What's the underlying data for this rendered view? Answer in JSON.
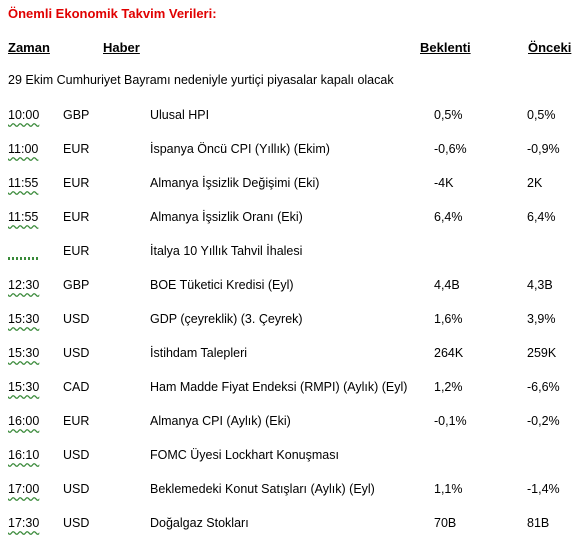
{
  "title": "Önemli Ekonomik Takvim Verileri:",
  "headers": {
    "time": "Zaman",
    "news": "Haber",
    "expected": "Beklenti",
    "previous": "Önceki"
  },
  "notice": "29 Ekim Cumhuriyet Bayramı nedeniyle yurtiçi piyasalar kapalı olacak",
  "rows": [
    {
      "time": "10:00",
      "currency": "GBP",
      "news": "Ulusal HPI",
      "expected": "0,5%",
      "previous": "0,5%"
    },
    {
      "time": "11:00",
      "currency": "EUR",
      "news": "İspanya Öncü CPI (Yıllık) (Ekim)",
      "expected": "-0,6%",
      "previous": "-0,9%"
    },
    {
      "time": "11:55",
      "currency": "EUR",
      "news": "Almanya İşsizlik Değişimi (Eki)",
      "expected": "-4K",
      "previous": "2K"
    },
    {
      "time": "11:55",
      "currency": "EUR",
      "news": "Almanya İşsizlik Oranı (Eki)",
      "expected": "6,4%",
      "previous": "6,4%"
    },
    {
      "time": "",
      "currency": "EUR",
      "news": "İtalya 10 Yıllık Tahvil İhalesi",
      "expected": "",
      "previous": ""
    },
    {
      "time": "12:30",
      "currency": "GBP",
      "news": "BOE Tüketici Kredisi (Eyl)",
      "expected": "4,4B",
      "previous": "4,3B"
    },
    {
      "time": "15:30",
      "currency": "USD",
      "news": "GDP (çeyreklik) (3. Çeyrek)",
      "expected": "1,6%",
      "previous": "3,9%"
    },
    {
      "time": "15:30",
      "currency": "USD",
      "news": "İstihdam Talepleri",
      "expected": "264K",
      "previous": "259K"
    },
    {
      "time": "15:30",
      "currency": "CAD",
      "news": "Ham Madde Fiyat Endeksi (RMPI) (Aylık) (Eyl)",
      "expected": "1,2%",
      "previous": "-6,6%"
    },
    {
      "time": "16:00",
      "currency": "EUR",
      "news": "Almanya CPI (Aylık) (Eki)",
      "expected": "-0,1%",
      "previous": "-0,2%"
    },
    {
      "time": "16:10",
      "currency": "USD",
      "news": "FOMC Üyesi Lockhart Konuşması",
      "expected": "",
      "previous": ""
    },
    {
      "time": "17:00",
      "currency": "USD",
      "news": "Beklemedeki Konut Satışları (Aylık) (Eyl)",
      "expected": "1,1%",
      "previous": "-1,4%"
    },
    {
      "time": "17:30",
      "currency": "USD",
      "news": "Doğalgaz Stokları",
      "expected": "70B",
      "previous": "81B"
    }
  ]
}
